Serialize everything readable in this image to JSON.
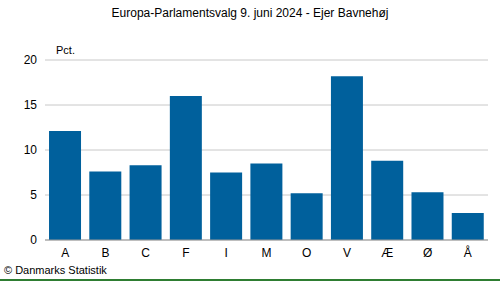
{
  "chart_data": {
    "type": "bar",
    "title": "Europa-Parlamentsvalg 9. juni 2024 - Ejer Bavnehøj",
    "y_label": "Pct.",
    "annotation": "© Danmarks Statistik",
    "categories": [
      "A",
      "B",
      "C",
      "F",
      "I",
      "M",
      "O",
      "V",
      "Æ",
      "Ø",
      "Å"
    ],
    "values": [
      12.1,
      7.6,
      8.3,
      16.0,
      7.5,
      8.5,
      5.2,
      18.2,
      8.8,
      5.3,
      3.0
    ],
    "color": "#00609c",
    "ylim": [
      0,
      20
    ],
    "yticks": [
      0,
      5,
      10,
      15,
      20
    ],
    "grid": true
  }
}
